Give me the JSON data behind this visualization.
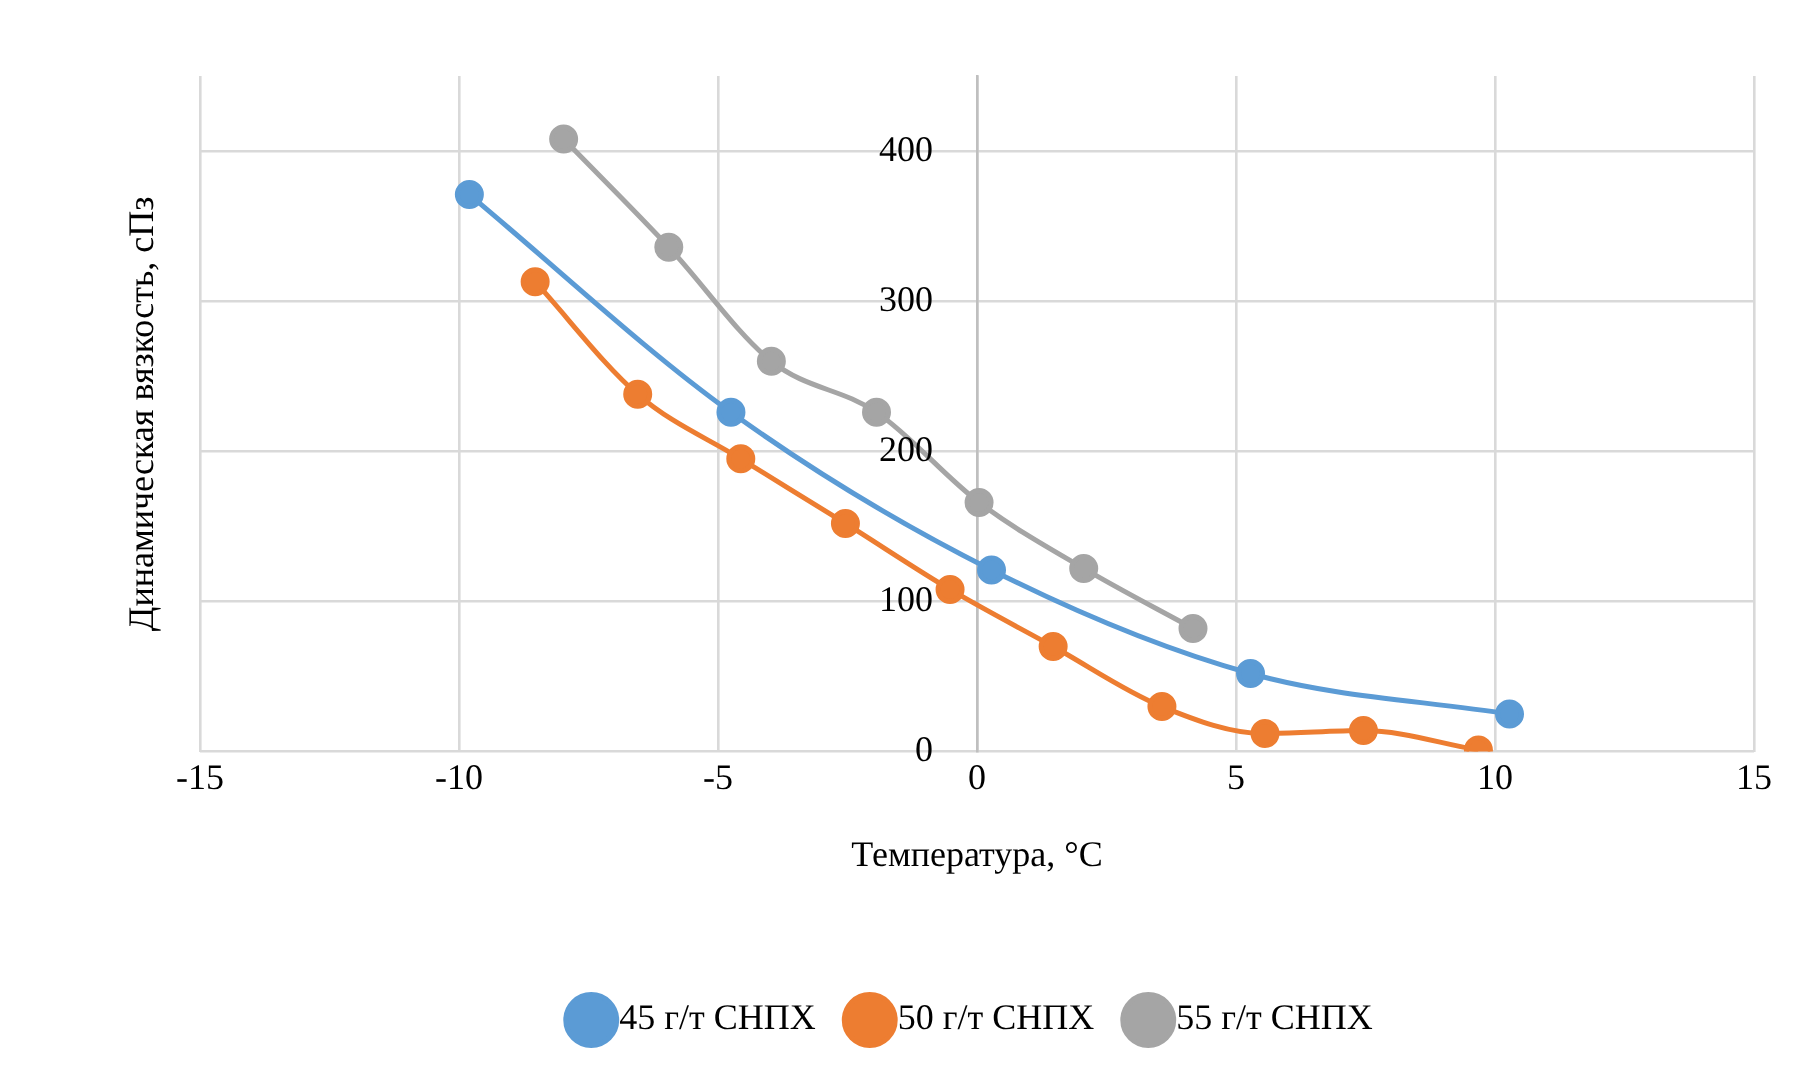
{
  "chart_data": {
    "type": "line",
    "xlabel": "Температура, °C",
    "ylabel": "Динамическая вязкость, сПз",
    "xlim": [
      -15,
      15
    ],
    "xticks": [
      -15,
      -10,
      -5,
      0,
      5,
      10,
      15
    ],
    "ylim": [
      0,
      450
    ],
    "yticks": [
      0,
      100,
      200,
      300,
      400
    ],
    "grid": true,
    "legend": "bottom",
    "marker": "circle",
    "line_style": "solid",
    "series": [
      {
        "name": "45 г/т СНПХ",
        "color": "#5b9bd5",
        "x": [
          -9.8,
          -4.75,
          0.28,
          5.28,
          10.28
        ],
        "values": [
          371,
          226,
          121,
          52,
          25
        ]
      },
      {
        "name": "50 г/т СНПХ",
        "color": "#ed7d31",
        "x": [
          -8.53,
          -6.55,
          -4.56,
          -2.54,
          -0.52,
          1.47,
          3.57,
          5.56,
          7.46,
          9.68
        ],
        "values": [
          313,
          238,
          195,
          152,
          108,
          70,
          30,
          12,
          14,
          1
        ]
      },
      {
        "name": "55 г/т СНПХ",
        "color": "#a5a5a5",
        "x": [
          -7.98,
          -5.95,
          -3.97,
          -1.94,
          0.04,
          2.06,
          4.17
        ],
        "values": [
          408,
          336,
          260,
          226,
          166,
          122,
          82
        ]
      }
    ]
  }
}
